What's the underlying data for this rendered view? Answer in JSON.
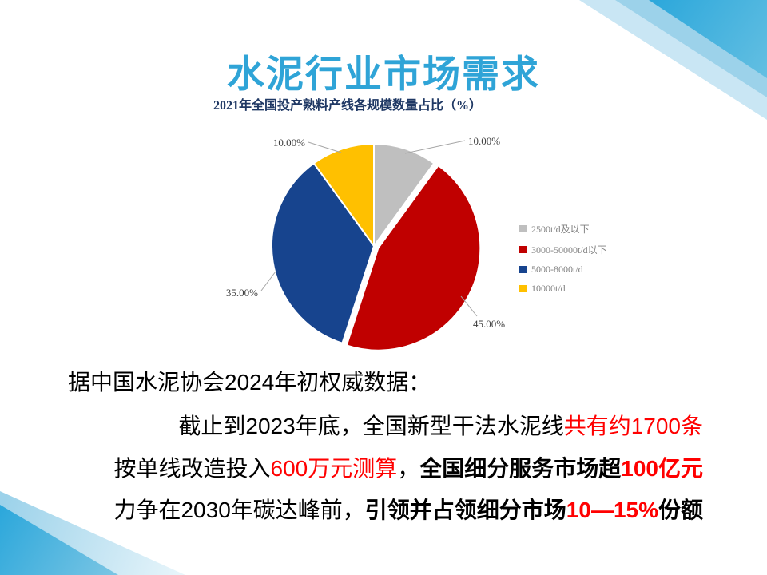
{
  "slide": {
    "title": "水泥行业市场需求"
  },
  "colors": {
    "title": "#2FA4D7",
    "chart_title": "#1F3864",
    "red_text": "#FF0000",
    "black_text": "#000000",
    "leader_line": "#A6A6A6",
    "deco_cyan_dark": "#2BA7DB",
    "deco_cyan_light": "#C9E6F4"
  },
  "chart_data": {
    "type": "pie",
    "title": "2021年全国投产熟料产线各规模数量占比（%）",
    "direction": "clockwise",
    "start_angle_deg": 0,
    "legend_position": "right",
    "slices": [
      {
        "label": "2500t/d及以下",
        "value": 10,
        "display": "10.00%",
        "color": "#BFBFBF",
        "exploded": false
      },
      {
        "label": "3000-50000t/d以下",
        "value": 45,
        "display": "45.00%",
        "color": "#C00000",
        "exploded": true
      },
      {
        "label": "5000-8000t/d",
        "value": 35,
        "display": "35.00%",
        "color": "#17448E",
        "exploded": false
      },
      {
        "label": "10000t/d",
        "value": 10,
        "display": "10.00%",
        "color": "#FFC000",
        "exploded": false
      }
    ]
  },
  "body": {
    "lines": [
      [
        {
          "text": "据中国水泥协会2024年初权威数据：",
          "color": "#000000",
          "bold": false
        }
      ],
      [
        {
          "text": "截止到2023年底，全国新型干法水泥线",
          "color": "#000000",
          "bold": false
        },
        {
          "text": "共有约1700条",
          "color": "#FF0000",
          "bold": false
        }
      ],
      [
        {
          "text": "按单线改造投入",
          "color": "#000000",
          "bold": false
        },
        {
          "text": "600万元测算",
          "color": "#FF0000",
          "bold": false
        },
        {
          "text": "，",
          "color": "#000000",
          "bold": false
        },
        {
          "text": "全国细分服务市场超",
          "color": "#000000",
          "bold": true
        },
        {
          "text": "100亿元",
          "color": "#FF0000",
          "bold": true
        }
      ],
      [
        {
          "text": "力争在2030年碳达峰前，",
          "color": "#000000",
          "bold": false
        },
        {
          "text": "引领并占领细分市场",
          "color": "#000000",
          "bold": true
        },
        {
          "text": "10—15%",
          "color": "#FF0000",
          "bold": true
        },
        {
          "text": "份额",
          "color": "#000000",
          "bold": true
        }
      ]
    ]
  }
}
